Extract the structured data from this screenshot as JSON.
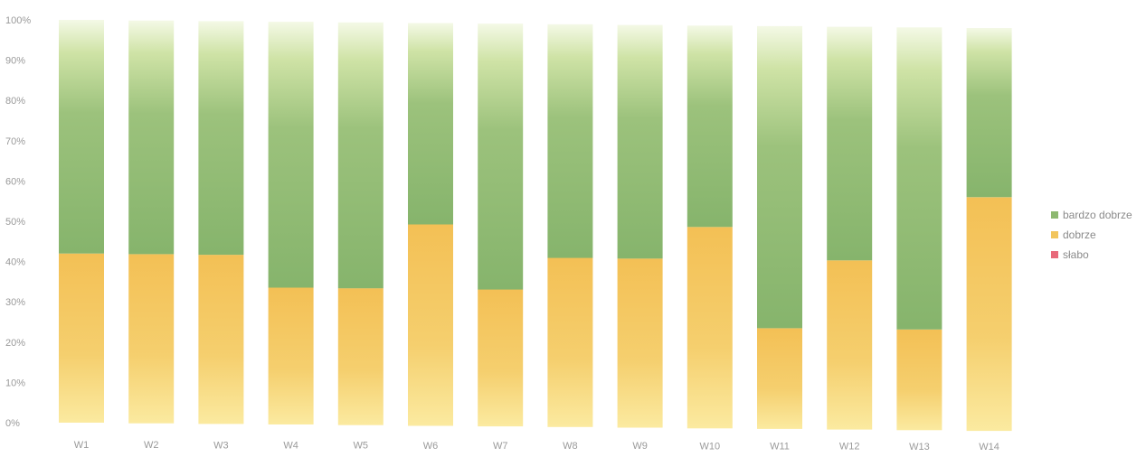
{
  "chart_data": {
    "type": "bar",
    "stacked": true,
    "percent_stacked": true,
    "categories": [
      "W1",
      "W2",
      "W3",
      "W4",
      "W5",
      "W6",
      "W7",
      "W8",
      "W9",
      "W10",
      "W11",
      "W12",
      "W13",
      "W14"
    ],
    "series": [
      {
        "name": "słabo",
        "color": "#e8697a",
        "values": [
          0,
          0,
          0,
          0,
          0,
          0,
          0,
          0,
          0,
          0,
          0,
          0,
          0,
          0
        ]
      },
      {
        "name": "dobrze",
        "color": "#f2c55c",
        "values": [
          42,
          42,
          42,
          34,
          34,
          50,
          34,
          42,
          42,
          50,
          25,
          42,
          25,
          58
        ]
      },
      {
        "name": "bardzo dobrze",
        "color": "#8db870",
        "values": [
          58,
          58,
          58,
          66,
          66,
          50,
          66,
          58,
          58,
          50,
          75,
          58,
          75,
          42
        ]
      }
    ],
    "y_ticks": [
      "0%",
      "10%",
      "20%",
      "30%",
      "40%",
      "50%",
      "60%",
      "70%",
      "80%",
      "90%",
      "100%"
    ],
    "ylim": [
      0,
      100
    ],
    "legend_position": "right",
    "legend_order": [
      "bardzo dobrze",
      "dobrze",
      "słabo"
    ]
  }
}
